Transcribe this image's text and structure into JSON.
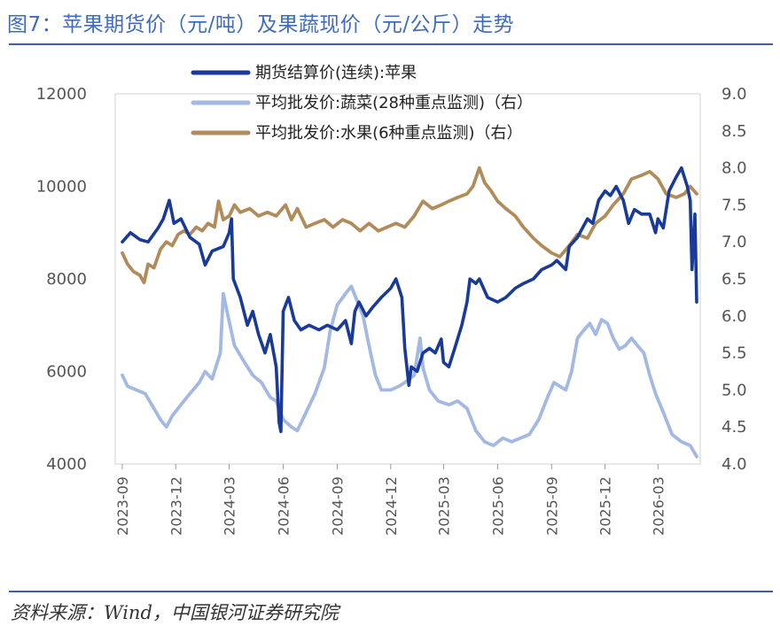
{
  "figure": {
    "title": "图7：苹果期货价（元/吨）及果蔬现价（元/公斤）走势",
    "source": "资料来源：Wind，中国银河证券研究院"
  },
  "chart_data": {
    "type": "line",
    "x_tick_labels": [
      "2023-09",
      "2023-12",
      "2024-03",
      "2024-06",
      "2024-09",
      "2024-12",
      "2025-03",
      "2025-06",
      "2025-09",
      "2025-12",
      "2026-03"
    ],
    "y_left": {
      "range": [
        4000,
        12000
      ],
      "ticks": [
        "4000",
        "6000",
        "8000",
        "10000",
        "12000"
      ]
    },
    "y_right": {
      "range": [
        4.0,
        9.0
      ],
      "ticks": [
        "4.0",
        "4.5",
        "5.0",
        "5.5",
        "6.0",
        "6.5",
        "7.0",
        "7.5",
        "8.0",
        "8.5",
        "9.0"
      ]
    },
    "legend_position": "top-center",
    "series": [
      {
        "name": "期货结算价(连续):苹果",
        "axis": "left",
        "color": "#1a3a9a",
        "points": [
          [
            "2023-09-01",
            8800
          ],
          [
            "2023-09-15",
            9000
          ],
          [
            "2023-10-01",
            8850
          ],
          [
            "2023-10-15",
            8800
          ],
          [
            "2023-11-01",
            9100
          ],
          [
            "2023-11-10",
            9300
          ],
          [
            "2023-11-20",
            9700
          ],
          [
            "2023-11-28",
            9200
          ],
          [
            "2023-12-10",
            9300
          ],
          [
            "2023-12-25",
            8900
          ],
          [
            "2024-01-10",
            8750
          ],
          [
            "2024-01-20",
            8300
          ],
          [
            "2024-02-01",
            8600
          ],
          [
            "2024-02-20",
            8700
          ],
          [
            "2024-03-01",
            9000
          ],
          [
            "2024-03-05",
            9300
          ],
          [
            "2024-03-08",
            8000
          ],
          [
            "2024-03-20",
            7600
          ],
          [
            "2024-04-01",
            7000
          ],
          [
            "2024-04-10",
            7300
          ],
          [
            "2024-04-20",
            6800
          ],
          [
            "2024-05-01",
            6400
          ],
          [
            "2024-05-10",
            6800
          ],
          [
            "2024-05-20",
            6100
          ],
          [
            "2024-05-25",
            4900
          ],
          [
            "2024-05-28",
            4700
          ],
          [
            "2024-06-01",
            7300
          ],
          [
            "2024-06-10",
            7600
          ],
          [
            "2024-06-20",
            7100
          ],
          [
            "2024-07-01",
            6900
          ],
          [
            "2024-07-15",
            7000
          ],
          [
            "2024-08-01",
            6900
          ],
          [
            "2024-08-15",
            7000
          ],
          [
            "2024-09-01",
            6900
          ],
          [
            "2024-09-15",
            7100
          ],
          [
            "2024-09-25",
            6600
          ],
          [
            "2024-10-01",
            7300
          ],
          [
            "2024-10-08",
            7500
          ],
          [
            "2024-10-20",
            7200
          ],
          [
            "2024-11-01",
            7400
          ],
          [
            "2024-11-15",
            7600
          ],
          [
            "2024-12-01",
            7800
          ],
          [
            "2024-12-10",
            8000
          ],
          [
            "2024-12-20",
            7600
          ],
          [
            "2024-12-25",
            6500
          ],
          [
            "2025-01-01",
            5700
          ],
          [
            "2025-01-05",
            6100
          ],
          [
            "2025-01-15",
            6000
          ],
          [
            "2025-01-25",
            6400
          ],
          [
            "2025-02-05",
            6500
          ],
          [
            "2025-02-15",
            6400
          ],
          [
            "2025-02-25",
            6700
          ],
          [
            "2025-03-01",
            6200
          ],
          [
            "2025-03-10",
            6100
          ],
          [
            "2025-03-20",
            6500
          ],
          [
            "2025-04-01",
            7000
          ],
          [
            "2025-04-10",
            7500
          ],
          [
            "2025-04-15",
            8000
          ],
          [
            "2025-04-25",
            7900
          ],
          [
            "2025-05-01",
            8000
          ],
          [
            "2025-05-15",
            7600
          ],
          [
            "2025-06-01",
            7500
          ],
          [
            "2025-06-15",
            7600
          ],
          [
            "2025-07-01",
            7800
          ],
          [
            "2025-07-15",
            7900
          ],
          [
            "2025-08-01",
            8000
          ],
          [
            "2025-08-15",
            8200
          ],
          [
            "2025-09-01",
            8300
          ],
          [
            "2025-09-10",
            8400
          ],
          [
            "2025-09-25",
            8200
          ],
          [
            "2025-10-01",
            8700
          ],
          [
            "2025-10-15",
            8900
          ],
          [
            "2025-11-01",
            9300
          ],
          [
            "2025-11-10",
            9200
          ],
          [
            "2025-11-20",
            9700
          ],
          [
            "2025-12-01",
            9900
          ],
          [
            "2025-12-10",
            9800
          ],
          [
            "2025-12-20",
            10000
          ],
          [
            "2026-01-01",
            9700
          ],
          [
            "2026-01-10",
            9200
          ],
          [
            "2026-01-20",
            9500
          ],
          [
            "2026-02-01",
            9400
          ],
          [
            "2026-02-15",
            9400
          ],
          [
            "2026-02-25",
            9000
          ],
          [
            "2026-03-01",
            9300
          ],
          [
            "2026-03-10",
            9100
          ],
          [
            "2026-03-20",
            9900
          ],
          [
            "2026-04-01",
            10200
          ],
          [
            "2026-04-10",
            10400
          ],
          [
            "2026-04-20",
            10000
          ],
          [
            "2026-04-25",
            9700
          ],
          [
            "2026-04-28",
            8200
          ],
          [
            "2026-05-03",
            9400
          ],
          [
            "2026-05-06",
            7500
          ]
        ]
      },
      {
        "name": "平均批发价:蔬菜(28种重点监测)（右）",
        "axis": "right",
        "color": "#a3b8e3",
        "points": [
          [
            "2023-09-01",
            5.2
          ],
          [
            "2023-09-10",
            5.05
          ],
          [
            "2023-09-25",
            5.0
          ],
          [
            "2023-10-10",
            4.95
          ],
          [
            "2023-10-25",
            4.75
          ],
          [
            "2023-11-05",
            4.6
          ],
          [
            "2023-11-15",
            4.5
          ],
          [
            "2023-11-25",
            4.65
          ],
          [
            "2023-12-10",
            4.8
          ],
          [
            "2023-12-25",
            4.95
          ],
          [
            "2024-01-10",
            5.1
          ],
          [
            "2024-01-20",
            5.25
          ],
          [
            "2024-02-01",
            5.15
          ],
          [
            "2024-02-15",
            5.5
          ],
          [
            "2024-02-20",
            6.3
          ],
          [
            "2024-02-28",
            6.0
          ],
          [
            "2024-03-10",
            5.6
          ],
          [
            "2024-03-25",
            5.4
          ],
          [
            "2024-04-10",
            5.2
          ],
          [
            "2024-04-25",
            5.1
          ],
          [
            "2024-05-10",
            4.9
          ],
          [
            "2024-05-20",
            4.85
          ],
          [
            "2024-06-01",
            4.6
          ],
          [
            "2024-06-15",
            4.5
          ],
          [
            "2024-06-25",
            4.45
          ],
          [
            "2024-07-10",
            4.7
          ],
          [
            "2024-07-25",
            4.95
          ],
          [
            "2024-08-10",
            5.3
          ],
          [
            "2024-08-20",
            5.8
          ],
          [
            "2024-09-01",
            6.15
          ],
          [
            "2024-09-15",
            6.3
          ],
          [
            "2024-09-25",
            6.4
          ],
          [
            "2024-10-05",
            6.2
          ],
          [
            "2024-10-15",
            6.0
          ],
          [
            "2024-10-25",
            5.6
          ],
          [
            "2024-11-05",
            5.2
          ],
          [
            "2024-11-15",
            5.0
          ],
          [
            "2024-12-01",
            5.0
          ],
          [
            "2024-12-15",
            5.05
          ],
          [
            "2024-12-25",
            5.1
          ],
          [
            "2025-01-10",
            5.2
          ],
          [
            "2025-01-20",
            5.7
          ],
          [
            "2025-01-25",
            5.3
          ],
          [
            "2025-02-05",
            5.0
          ],
          [
            "2025-02-20",
            4.85
          ],
          [
            "2025-03-10",
            4.8
          ],
          [
            "2025-03-25",
            4.85
          ],
          [
            "2025-04-10",
            4.75
          ],
          [
            "2025-04-25",
            4.45
          ],
          [
            "2025-05-10",
            4.3
          ],
          [
            "2025-05-25",
            4.25
          ],
          [
            "2025-06-10",
            4.35
          ],
          [
            "2025-06-25",
            4.3
          ],
          [
            "2025-07-10",
            4.35
          ],
          [
            "2025-07-25",
            4.4
          ],
          [
            "2025-08-10",
            4.6
          ],
          [
            "2025-08-25",
            4.9
          ],
          [
            "2025-09-05",
            5.1
          ],
          [
            "2025-09-15",
            5.05
          ],
          [
            "2025-09-25",
            5.0
          ],
          [
            "2025-10-05",
            5.25
          ],
          [
            "2025-10-15",
            5.7
          ],
          [
            "2025-10-25",
            5.8
          ],
          [
            "2025-11-05",
            5.9
          ],
          [
            "2025-11-15",
            5.75
          ],
          [
            "2025-11-25",
            5.95
          ],
          [
            "2025-12-05",
            5.9
          ],
          [
            "2025-12-15",
            5.7
          ],
          [
            "2025-12-25",
            5.55
          ],
          [
            "2026-01-05",
            5.6
          ],
          [
            "2026-01-15",
            5.7
          ],
          [
            "2026-01-25",
            5.6
          ],
          [
            "2026-02-05",
            5.5
          ],
          [
            "2026-02-15",
            5.2
          ],
          [
            "2026-02-25",
            4.95
          ],
          [
            "2026-03-10",
            4.7
          ],
          [
            "2026-03-25",
            4.4
          ],
          [
            "2026-04-10",
            4.3
          ],
          [
            "2026-04-25",
            4.25
          ],
          [
            "2026-05-06",
            4.1
          ]
        ]
      },
      {
        "name": "平均批发价:水果(6种重点监测)（右）",
        "axis": "right",
        "color": "#b18c5a",
        "points": [
          [
            "2023-09-01",
            6.85
          ],
          [
            "2023-09-10",
            6.7
          ],
          [
            "2023-09-20",
            6.6
          ],
          [
            "2023-10-01",
            6.55
          ],
          [
            "2023-10-08",
            6.45
          ],
          [
            "2023-10-15",
            6.7
          ],
          [
            "2023-10-25",
            6.65
          ],
          [
            "2023-11-05",
            6.9
          ],
          [
            "2023-11-15",
            7.0
          ],
          [
            "2023-11-25",
            6.95
          ],
          [
            "2023-12-05",
            7.1
          ],
          [
            "2023-12-15",
            7.15
          ],
          [
            "2023-12-25",
            7.1
          ],
          [
            "2024-01-05",
            7.2
          ],
          [
            "2024-01-15",
            7.15
          ],
          [
            "2024-01-25",
            7.25
          ],
          [
            "2024-02-05",
            7.2
          ],
          [
            "2024-02-12",
            7.55
          ],
          [
            "2024-02-20",
            7.3
          ],
          [
            "2024-03-01",
            7.35
          ],
          [
            "2024-03-10",
            7.5
          ],
          [
            "2024-03-20",
            7.4
          ],
          [
            "2024-04-05",
            7.45
          ],
          [
            "2024-04-20",
            7.35
          ],
          [
            "2024-05-05",
            7.4
          ],
          [
            "2024-05-20",
            7.35
          ],
          [
            "2024-06-05",
            7.5
          ],
          [
            "2024-06-15",
            7.3
          ],
          [
            "2024-06-25",
            7.45
          ],
          [
            "2024-07-10",
            7.2
          ],
          [
            "2024-07-25",
            7.25
          ],
          [
            "2024-08-10",
            7.3
          ],
          [
            "2024-08-25",
            7.2
          ],
          [
            "2024-09-10",
            7.3
          ],
          [
            "2024-09-25",
            7.25
          ],
          [
            "2024-10-10",
            7.15
          ],
          [
            "2024-10-25",
            7.25
          ],
          [
            "2024-11-10",
            7.15
          ],
          [
            "2024-11-25",
            7.2
          ],
          [
            "2024-12-10",
            7.25
          ],
          [
            "2024-12-25",
            7.2
          ],
          [
            "2025-01-10",
            7.35
          ],
          [
            "2025-01-25",
            7.55
          ],
          [
            "2025-02-10",
            7.45
          ],
          [
            "2025-02-25",
            7.5
          ],
          [
            "2025-03-10",
            7.55
          ],
          [
            "2025-03-25",
            7.6
          ],
          [
            "2025-04-10",
            7.65
          ],
          [
            "2025-04-20",
            7.75
          ],
          [
            "2025-05-01",
            8.0
          ],
          [
            "2025-05-10",
            7.8
          ],
          [
            "2025-05-20",
            7.7
          ],
          [
            "2025-06-01",
            7.55
          ],
          [
            "2025-06-15",
            7.45
          ],
          [
            "2025-07-01",
            7.35
          ],
          [
            "2025-07-15",
            7.2
          ],
          [
            "2025-08-01",
            7.05
          ],
          [
            "2025-08-15",
            6.95
          ],
          [
            "2025-09-01",
            6.85
          ],
          [
            "2025-09-15",
            6.8
          ],
          [
            "2025-10-01",
            6.95
          ],
          [
            "2025-10-15",
            7.1
          ],
          [
            "2025-11-01",
            7.05
          ],
          [
            "2025-11-15",
            7.25
          ],
          [
            "2025-12-01",
            7.35
          ],
          [
            "2025-12-15",
            7.5
          ],
          [
            "2026-01-01",
            7.65
          ],
          [
            "2026-01-15",
            7.85
          ],
          [
            "2026-02-01",
            7.9
          ],
          [
            "2026-02-15",
            7.95
          ],
          [
            "2026-03-01",
            7.85
          ],
          [
            "2026-03-15",
            7.65
          ],
          [
            "2026-04-01",
            7.6
          ],
          [
            "2026-04-15",
            7.65
          ],
          [
            "2026-04-25",
            7.75
          ],
          [
            "2026-05-06",
            7.65
          ]
        ]
      }
    ]
  }
}
